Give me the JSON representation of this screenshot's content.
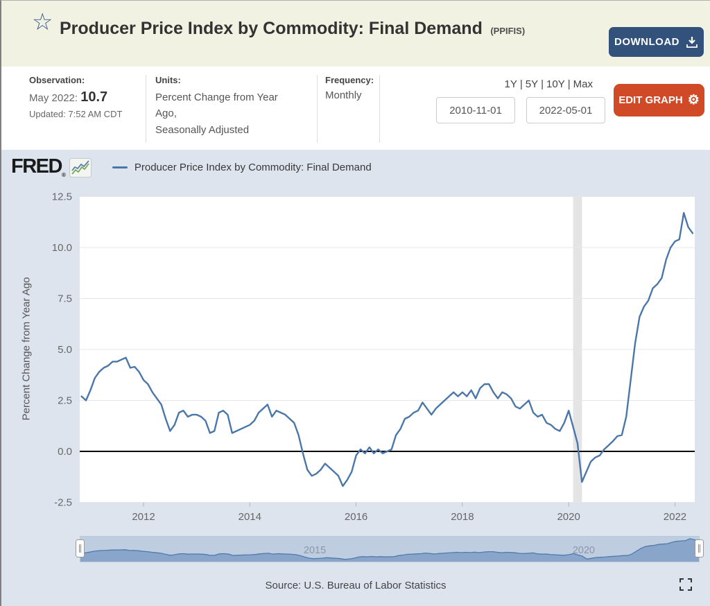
{
  "header": {
    "title": "Producer Price Index by Commodity: Final Demand",
    "ticker": "(PPIFIS)",
    "download_label": "DOWNLOAD"
  },
  "info": {
    "observation": {
      "label": "Observation:",
      "date_prefix": "May 2022: ",
      "value": "10.7",
      "updated": "Updated: 7:52 AM CDT"
    },
    "units": {
      "label": "Units:",
      "line1": "Percent Change from Year Ago,",
      "line2": "Seasonally Adjusted"
    },
    "frequency": {
      "label": "Frequency:",
      "value": "Monthly"
    }
  },
  "toolbar": {
    "ranges": [
      "1Y",
      "5Y",
      "10Y",
      "Max"
    ],
    "separator": "|",
    "date_start": "2010-11-01",
    "date_end": "2022-05-01",
    "edit_label": "EDIT GRAPH"
  },
  "brand": {
    "logo_text": "FRED",
    "reg": "®"
  },
  "legend": {
    "label": "Producer Price Index by Commodity: Final Demand"
  },
  "selector": {
    "labels": [
      "2015",
      "2020"
    ]
  },
  "footer": {
    "source": "Source: U.S. Bureau of Labor Statistics"
  },
  "colors": {
    "line": "#4a76a8",
    "header_bg": "#f2f2e3",
    "chart_bg": "#dee4ee",
    "download_btn": "#32527b",
    "edit_btn": "#d14a28",
    "zero_line": "#000000",
    "gridline": "#e7e7e7",
    "recession_band": "#e4e4e4",
    "axis_text": "#666666",
    "selector_area": "#8da9cd",
    "selector_bg": "#ccd7e8"
  },
  "chart_data": {
    "type": "line",
    "title": "Producer Price Index by Commodity: Final Demand",
    "series_name": "Producer Price Index by Commodity: Final Demand",
    "xlabel": "",
    "ylabel": "Percent Change from Year Ago",
    "frequency": "monthly",
    "x_start": "2010-11",
    "x_end": "2022-05",
    "x_tick_labels": [
      "2012",
      "2014",
      "2016",
      "2018",
      "2020",
      "2022"
    ],
    "y_ticks": [
      12.5,
      10.0,
      7.5,
      5.0,
      2.5,
      0.0,
      -2.5
    ],
    "ylim": [
      -2.5,
      12.5
    ],
    "grid": true,
    "legend_position": "top",
    "recession_band": {
      "start_month": "2020-02",
      "end_month": "2020-04"
    },
    "last_observation": {
      "date": "May 2022",
      "value": 10.7
    },
    "values": [
      2.7,
      2.5,
      3.0,
      3.6,
      3.9,
      4.1,
      4.2,
      4.4,
      4.4,
      4.5,
      4.6,
      4.1,
      4.15,
      3.9,
      3.5,
      3.3,
      2.9,
      2.6,
      2.3,
      1.6,
      1.0,
      1.3,
      1.9,
      2.0,
      1.7,
      1.8,
      1.8,
      1.7,
      1.5,
      0.9,
      1.0,
      1.9,
      2.0,
      1.8,
      0.9,
      1.0,
      1.1,
      1.2,
      1.3,
      1.5,
      1.9,
      2.1,
      2.3,
      1.7,
      2.0,
      1.9,
      1.8,
      1.6,
      1.4,
      0.8,
      -0.1,
      -0.9,
      -1.2,
      -1.1,
      -0.9,
      -0.6,
      -0.8,
      -1.0,
      -1.2,
      -1.7,
      -1.4,
      -1.0,
      -0.2,
      0.1,
      -0.1,
      0.2,
      -0.1,
      0.1,
      -0.1,
      0.0,
      0.1,
      0.8,
      1.1,
      1.6,
      1.7,
      1.9,
      2.0,
      2.4,
      2.1,
      1.8,
      2.1,
      2.3,
      2.5,
      2.7,
      2.9,
      2.7,
      2.9,
      2.7,
      3.0,
      2.6,
      3.1,
      3.3,
      3.3,
      2.9,
      2.6,
      2.9,
      2.8,
      2.6,
      2.2,
      2.1,
      2.3,
      2.5,
      1.9,
      1.7,
      1.8,
      1.4,
      1.3,
      1.1,
      1.0,
      1.4,
      2.0,
      1.2,
      0.4,
      -1.5,
      -1.0,
      -0.5,
      -0.3,
      -0.2,
      0.1,
      0.3,
      0.5,
      0.75,
      0.8,
      1.7,
      3.5,
      5.3,
      6.6,
      7.1,
      7.4,
      8.0,
      8.2,
      8.5,
      9.4,
      10.0,
      10.3,
      10.4,
      11.7,
      11.0,
      10.7
    ]
  }
}
